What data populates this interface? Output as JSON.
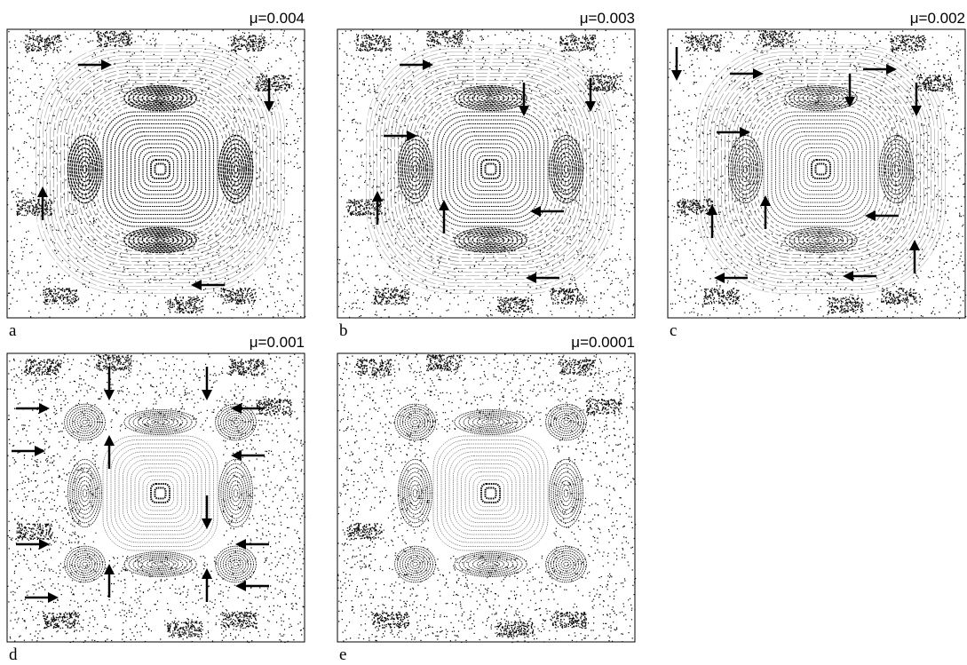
{
  "panels": [
    {
      "mu": "μ=0.004",
      "label": "a"
    },
    {
      "mu": "μ=0.003",
      "label": "b"
    },
    {
      "mu": "μ=0.002",
      "label": "c"
    },
    {
      "mu": "μ=0.001",
      "label": "d"
    },
    {
      "mu": "μ=0.0001",
      "label": "e"
    }
  ]
}
